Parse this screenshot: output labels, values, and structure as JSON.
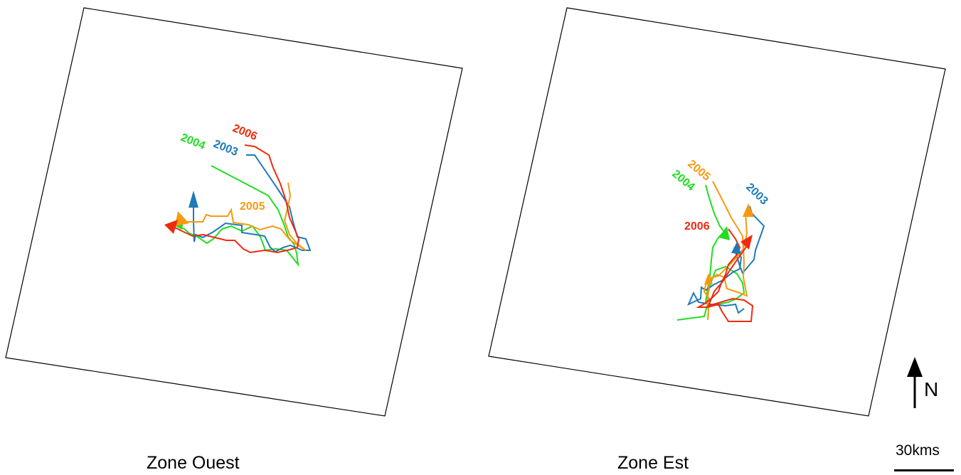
{
  "zones": [
    {
      "title": "Zone Ouest",
      "tracks": [
        {
          "year": "2003",
          "color": "#1f7ab8",
          "label": "2003"
        },
        {
          "year": "2004",
          "color": "#22dd22",
          "label": "2004"
        },
        {
          "year": "2005",
          "color": "#f59a10",
          "label": "2005"
        },
        {
          "year": "2006",
          "color": "#ee2a10",
          "label": "2006"
        }
      ]
    },
    {
      "title": "Zone Est",
      "tracks": [
        {
          "year": "2003",
          "color": "#1f7ab8",
          "label": "2003"
        },
        {
          "year": "2004",
          "color": "#22dd22",
          "label": "2004"
        },
        {
          "year": "2005",
          "color": "#f59a10",
          "label": "2005"
        },
        {
          "year": "2006",
          "color": "#ee2a10",
          "label": "2006"
        }
      ]
    }
  ],
  "north_arrow": {
    "label": "N"
  },
  "scale": {
    "label": "30kms"
  },
  "colors": {
    "2003": "#1f7ab8",
    "2004": "#22dd22",
    "2005": "#f59a10",
    "2006": "#ee2a10"
  }
}
